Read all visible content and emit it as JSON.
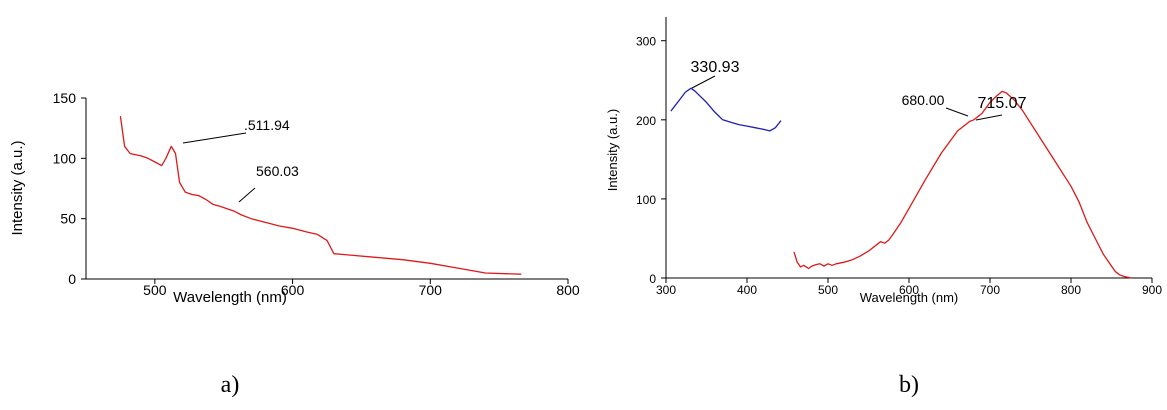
{
  "chart_data": [
    {
      "type": "line",
      "xlabel": "Wavelength (nm)",
      "ylabel": "Intensity (a.u.)",
      "xlim": [
        450,
        800
      ],
      "ylim": [
        0,
        150
      ],
      "xticks": [
        500,
        600,
        700,
        800
      ],
      "yticks": [
        0,
        50,
        100,
        150
      ],
      "color": "#dd1a1a",
      "caption": "a)",
      "series": [
        {
          "x": [
            475,
            478,
            482,
            486,
            490,
            495,
            500,
            505,
            508,
            511.94,
            515,
            518,
            522,
            527,
            532,
            537,
            542,
            548,
            553,
            558,
            563,
            570,
            580,
            590,
            600,
            610,
            618,
            625,
            630,
            640,
            660,
            680,
            700,
            720,
            740,
            766
          ],
          "y": [
            135,
            110,
            104,
            103,
            102,
            100,
            97,
            94,
            100,
            110,
            104,
            80,
            72,
            70,
            69,
            66,
            62,
            60,
            58,
            56,
            53,
            50,
            47,
            44,
            42,
            39,
            37,
            32,
            21,
            20,
            18,
            16,
            13,
            9,
            5,
            4
          ]
        }
      ],
      "annotations": [
        {
          "text": ".511.94",
          "x": 511.94,
          "y": 110
        },
        {
          "text": "560.03",
          "x": 560.03,
          "y": 55
        }
      ]
    },
    {
      "type": "line",
      "xlabel": "Wavelength (nm)",
      "ylabel": "Intensity (a.u.)",
      "xlim": [
        300,
        900
      ],
      "ylim": [
        0,
        330
      ],
      "xticks": [
        300,
        400,
        500,
        600,
        700,
        800,
        900
      ],
      "yticks": [
        0,
        100,
        200,
        300
      ],
      "caption": "b)",
      "series": [
        {
          "color": "#1f1fb4",
          "x": [
            306,
            312,
            318,
            324,
            330.93,
            336,
            342,
            350,
            360,
            370,
            380,
            390,
            400,
            410,
            420,
            428,
            435,
            442
          ],
          "y": [
            211,
            219,
            227,
            235,
            240,
            236,
            230,
            222,
            210,
            200,
            197,
            194,
            192,
            190,
            188,
            186,
            190,
            199
          ]
        },
        {
          "color": "#dd1a1a",
          "x": [
            458,
            462,
            466,
            470,
            476,
            480,
            485,
            490,
            495,
            500,
            505,
            510,
            520,
            530,
            540,
            550,
            560,
            565,
            570,
            575,
            580,
            590,
            600,
            620,
            640,
            660,
            675,
            680,
            690,
            700,
            708,
            715.07,
            720,
            730,
            740,
            760,
            780,
            800,
            810,
            820,
            830,
            840,
            850,
            855,
            860,
            865,
            870,
            875
          ],
          "y": [
            33,
            20,
            14,
            16,
            12,
            15,
            17,
            18,
            15,
            18,
            16,
            18,
            20,
            23,
            28,
            34,
            42,
            46,
            44,
            48,
            55,
            70,
            88,
            124,
            158,
            186,
            198,
            200,
            208,
            222,
            230,
            236,
            234,
            225,
            212,
            180,
            148,
            116,
            96,
            70,
            50,
            30,
            15,
            8,
            4,
            2,
            1,
            0
          ]
        }
      ],
      "annotations": [
        {
          "text": "330.93",
          "x": 330.93,
          "y": 240
        },
        {
          "text": "680.00",
          "x": 680,
          "y": 200
        },
        {
          "text": "715.07",
          "x": 715.07,
          "y": 236
        }
      ]
    }
  ]
}
